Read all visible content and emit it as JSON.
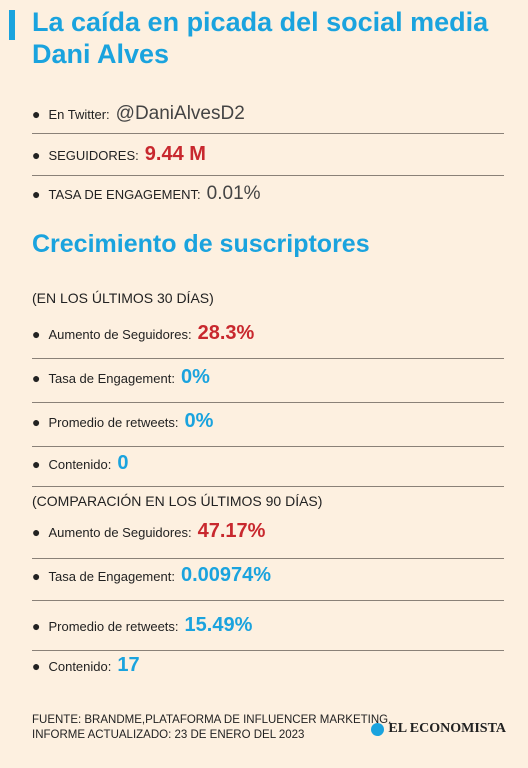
{
  "title": "La caída en picada del social media Dani Alves",
  "profile": [
    {
      "label": "En Twitter:",
      "value": "@DaniAlvesD2",
      "style": "plain"
    },
    {
      "label": "SEGUIDORES:",
      "value": "9.44 M",
      "style": "red"
    },
    {
      "label": "TASA DE ENGAGEMENT:",
      "value": "0.01%",
      "style": "plain"
    }
  ],
  "section_title": "Crecimiento de suscriptores",
  "period_30": {
    "heading": "(EN LOS ÚLTIMOS 30 DÍAS)",
    "rows": [
      {
        "label": "Aumento de Seguidores:",
        "value": "28.3%",
        "style": "red"
      },
      {
        "label": "Tasa de Engagement:",
        "value": "0%",
        "style": "blue"
      },
      {
        "label": "Promedio de retweets:",
        "value": "0%",
        "style": "blue"
      },
      {
        "label": "Contenido:",
        "value": "0",
        "style": "blue"
      }
    ]
  },
  "period_90": {
    "heading": "(COMPARACIÓN EN LOS ÚLTIMOS 90 DÍAS)",
    "rows": [
      {
        "label": "Aumento de Seguidores:",
        "value": "47.17%",
        "style": "red"
      },
      {
        "label": "Tasa de Engagement:",
        "value": "0.00974%",
        "style": "blue"
      },
      {
        "label": "Promedio de retweets:",
        "value": "15.49%",
        "style": "blue"
      },
      {
        "label": "Contenido:",
        "value": "17",
        "style": "blue"
      }
    ]
  },
  "footer": {
    "line1": "Fuente: BrandMe,plataforma de influencer marketing.",
    "line2": "Informe actualizado: 23 de enero del 2023"
  },
  "brand": {
    "name": "EL ECONOMISTA",
    "icon": "economista-logo-icon"
  },
  "colors": {
    "accent_blue": "#1aa3de",
    "accent_red": "#c8282e",
    "background": "#fdf0e0"
  }
}
